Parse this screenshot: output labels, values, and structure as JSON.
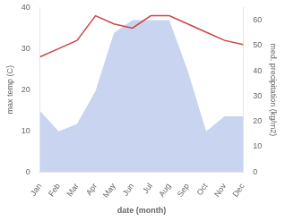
{
  "chart_data": {
    "type": "line",
    "xlabel": "date (month)",
    "ylabel": "max temp (C)",
    "y2label": "med. precipitation (kg/m2)",
    "categories": [
      "Jan",
      "Feb",
      "Mar",
      "Apr",
      "May",
      "Jun",
      "Jul",
      "Aug",
      "Sep",
      "Oct",
      "Nov",
      "Dec"
    ],
    "series": [
      {
        "type": "area",
        "axis": "y2",
        "color": "#c8d4f0",
        "values": [
          24,
          16,
          19,
          32,
          55,
          60,
          60,
          60,
          40,
          16,
          22,
          22
        ]
      },
      {
        "type": "line",
        "color": "#cc4444",
        "values": [
          28,
          30,
          32,
          38,
          36,
          35,
          38,
          38,
          36,
          34,
          32,
          31
        ]
      }
    ],
    "ylim": [
      0,
      40
    ],
    "yticks": [
      0,
      10,
      20,
      30,
      40
    ],
    "y2lim": [
      0,
      65
    ],
    "y2ticks": [
      0,
      10,
      20,
      30,
      40,
      50,
      60
    ],
    "grid": false
  }
}
